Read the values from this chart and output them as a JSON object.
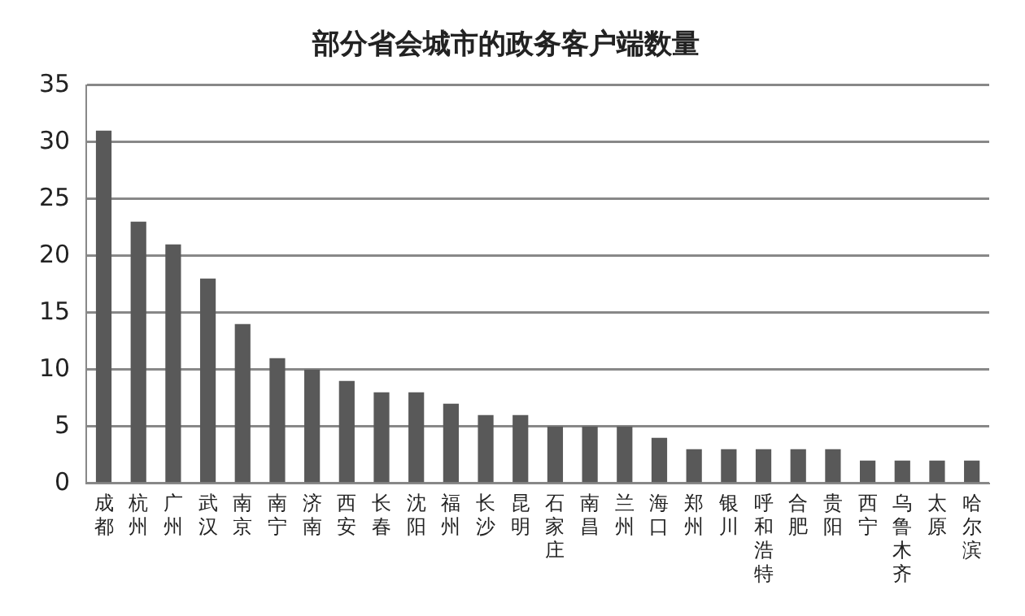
{
  "chart_data": {
    "type": "bar",
    "title": "部分省会城市的政务客户端数量",
    "categories": [
      "成都",
      "杭州",
      "广州",
      "武汉",
      "南京",
      "南宁",
      "济南",
      "西安",
      "长春",
      "沈阳",
      "福州",
      "长沙",
      "昆明",
      "石家庄",
      "南昌",
      "兰州",
      "海口",
      "郑州",
      "银川",
      "呼和浩特",
      "合肥",
      "贵阳",
      "西宁",
      "乌鲁木齐",
      "太原",
      "哈尔滨"
    ],
    "values": [
      31,
      23,
      21,
      18,
      14,
      11,
      10,
      9,
      8,
      8,
      7,
      6,
      6,
      5,
      5,
      5,
      4,
      3,
      3,
      3,
      3,
      3,
      2,
      2,
      2,
      2
    ],
    "color": "#595959",
    "ylim": [
      0,
      35
    ],
    "yticks": [
      0,
      5,
      10,
      15,
      20,
      25,
      30,
      35
    ],
    "grid": "y"
  }
}
